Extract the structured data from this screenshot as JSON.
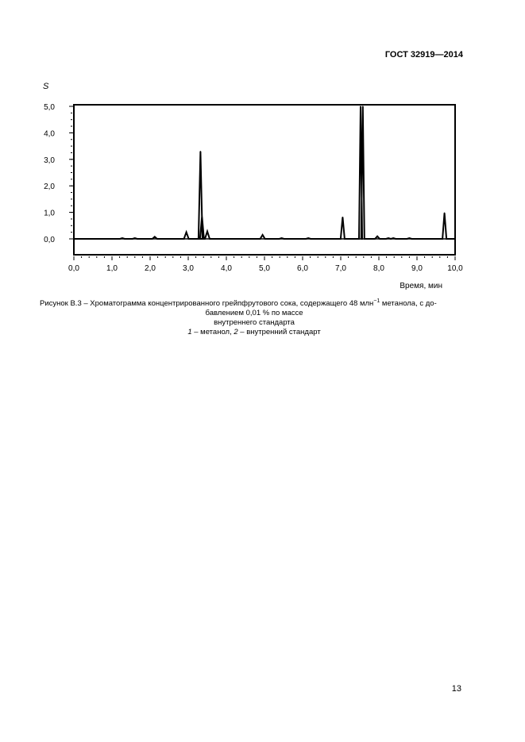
{
  "header": {
    "doc_id": "ГОСТ 32919—2014"
  },
  "chart_data": {
    "type": "line",
    "title": "",
    "ylabel": "S",
    "xlabel": "Время, мин",
    "xlim": [
      0,
      10
    ],
    "ylim": [
      0,
      5
    ],
    "yticks": [
      "0,0",
      "1,0",
      "2,0",
      "3,0",
      "4,0",
      "5,0"
    ],
    "xticks": [
      "0,0",
      "1,0",
      "2,0",
      "3,0",
      "4,0",
      "5,0",
      "6,0",
      "7,0",
      "8,0",
      "9,0",
      "10,0"
    ],
    "grid": false,
    "series": [
      {
        "peaks": [
          {
            "x": 1.27,
            "y": 0.03
          },
          {
            "x": 1.6,
            "y": 0.03
          },
          {
            "x": 2.12,
            "y": 0.08
          },
          {
            "x": 2.95,
            "y": 0.25
          },
          {
            "x": 3.32,
            "y": 3.3
          },
          {
            "x": 3.36,
            "y": 0.85
          },
          {
            "x": 3.5,
            "y": 0.28
          },
          {
            "x": 4.95,
            "y": 0.15
          },
          {
            "x": 5.45,
            "y": 0.03
          },
          {
            "x": 6.15,
            "y": 0.03
          },
          {
            "x": 7.05,
            "y": 0.82
          },
          {
            "x": 7.52,
            "y": 5.0
          },
          {
            "x": 7.58,
            "y": 5.0
          },
          {
            "x": 7.96,
            "y": 0.1
          },
          {
            "x": 8.25,
            "y": 0.03
          },
          {
            "x": 8.38,
            "y": 0.03
          },
          {
            "x": 8.8,
            "y": 0.03
          },
          {
            "x": 9.72,
            "y": 0.98
          }
        ]
      }
    ]
  },
  "caption": {
    "line1_prefix": "Рисунок В.3 – Хроматограмма концентрированного грейпфрутового сока, содержащего 48 млн",
    "line1_sup": "−1",
    "line1_suffix": " метанола, с до-",
    "line2": "бавлением 0,01 % по массе",
    "line3": "внутреннего стандарта",
    "legend_num1": "1",
    "legend_text1": " – метанол, ",
    "legend_num2": "2",
    "legend_text2": " – внутренний стандарт"
  },
  "page_number": "13"
}
